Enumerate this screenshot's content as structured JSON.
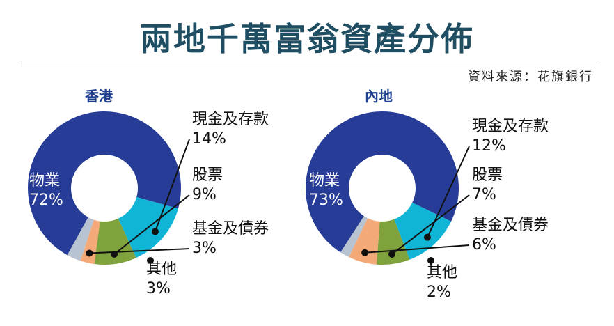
{
  "title": "兩地千萬富翁資產分佈",
  "source": "資料來源：花旗銀行",
  "chart_data": [
    {
      "type": "pie",
      "title": "香港",
      "slices": [
        {
          "label": "物業",
          "value": 72,
          "display": "72%",
          "color": "#263c97"
        },
        {
          "label": "現金及存款",
          "value": 14,
          "display": "14%",
          "color": "#10b5d5"
        },
        {
          "label": "股票",
          "value": 9,
          "display": "9%",
          "color": "#7fa23c"
        },
        {
          "label": "基金及債券",
          "value": 3,
          "display": "3%",
          "color": "#f4a978"
        },
        {
          "label": "其他",
          "value": 3,
          "display": "3%",
          "color": "#b7c3d0"
        }
      ]
    },
    {
      "type": "pie",
      "title": "內地",
      "slices": [
        {
          "label": "物業",
          "value": 73,
          "display": "73%",
          "color": "#263c97"
        },
        {
          "label": "現金及存款",
          "value": 12,
          "display": "12%",
          "color": "#10b5d5"
        },
        {
          "label": "股票",
          "value": 7,
          "display": "7%",
          "color": "#7fa23c"
        },
        {
          "label": "基金及債券",
          "value": 6,
          "display": "6%",
          "color": "#f4a978"
        },
        {
          "label": "其他",
          "value": 2,
          "display": "2%",
          "color": "#b7c3d0"
        }
      ]
    }
  ]
}
